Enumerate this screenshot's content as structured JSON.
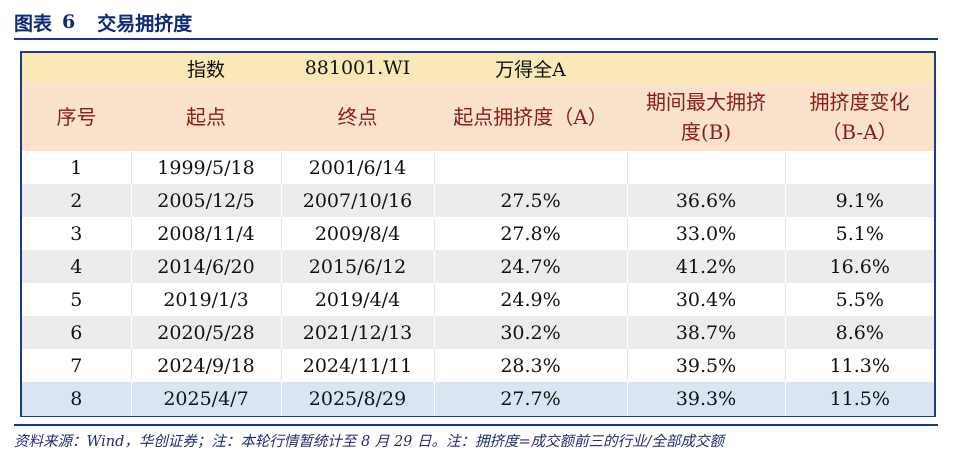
{
  "figure": {
    "label": "图表",
    "number": "6",
    "title": "交易拥挤度"
  },
  "index_row": {
    "label": "指数",
    "code": "881001.WI",
    "name": "万得全A"
  },
  "columns": [
    {
      "line1": "序号",
      "line2": ""
    },
    {
      "line1": "起点",
      "line2": ""
    },
    {
      "line1": "终点",
      "line2": ""
    },
    {
      "line1": "起点拥挤度（A）",
      "line2": ""
    },
    {
      "line1": "期间最大拥挤",
      "line2": "度(B)"
    },
    {
      "line1": "拥挤度变化",
      "line2": "（B-A）"
    }
  ],
  "rows": [
    {
      "no": "1",
      "start": "1999/5/18",
      "end": "2001/6/14",
      "start_crowd": "",
      "max_crowd": "",
      "change": ""
    },
    {
      "no": "2",
      "start": "2005/12/5",
      "end": "2007/10/16",
      "start_crowd": "27.5%",
      "max_crowd": "36.6%",
      "change": "9.1%"
    },
    {
      "no": "3",
      "start": "2008/11/4",
      "end": "2009/8/4",
      "start_crowd": "27.8%",
      "max_crowd": "33.0%",
      "change": "5.1%"
    },
    {
      "no": "4",
      "start": "2014/6/20",
      "end": "2015/6/12",
      "start_crowd": "24.7%",
      "max_crowd": "41.2%",
      "change": "16.6%"
    },
    {
      "no": "5",
      "start": "2019/1/3",
      "end": "2019/4/4",
      "start_crowd": "24.9%",
      "max_crowd": "30.4%",
      "change": "5.5%"
    },
    {
      "no": "6",
      "start": "2020/5/28",
      "end": "2021/12/13",
      "start_crowd": "30.2%",
      "max_crowd": "38.7%",
      "change": "8.6%"
    },
    {
      "no": "7",
      "start": "2024/9/18",
      "end": "2024/11/11",
      "start_crowd": "28.3%",
      "max_crowd": "39.5%",
      "change": "11.3%"
    },
    {
      "no": "8",
      "start": "2025/4/7",
      "end": "2025/8/29",
      "start_crowd": "27.7%",
      "max_crowd": "39.3%",
      "change": "11.5%"
    }
  ],
  "note": "资料来源：Wind，华创证券；注：本轮行情暂统计至 8 月 29 日。注：拥挤度=成交额前三的行业/全部成交额",
  "colors": {
    "title": "#0d2b7a",
    "frame": "#1e3a8a",
    "index_row_bg": "#fae8b6",
    "header_bg": "#fbe2cc",
    "header_text": "#8a1c14",
    "stripe_gray": "#ececec",
    "highlight_row": "#d9e5f3"
  }
}
